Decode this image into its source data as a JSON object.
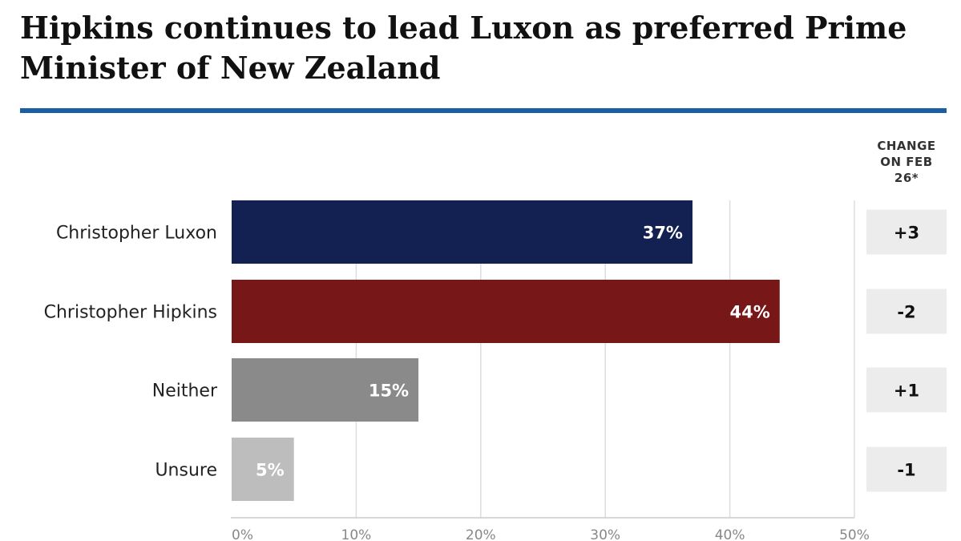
{
  "chart_data": {
    "type": "bar",
    "orientation": "horizontal",
    "title": "Hipkins continues to lead Luxon as preferred Prime Minister of New Zealand",
    "categories": [
      "Christopher Luxon",
      "Christopher Hipkins",
      "Neither",
      "Unsure"
    ],
    "values": [
      37,
      44,
      15,
      5
    ],
    "value_labels": [
      "37%",
      "44%",
      "15%",
      "5%"
    ],
    "colors": [
      "#122052",
      "#771718",
      "#8a8a8a",
      "#bdbdbd"
    ],
    "xlim": [
      0,
      50
    ],
    "x_ticks": [
      0,
      10,
      20,
      30,
      40,
      50
    ],
    "x_tick_labels": [
      "0%",
      "10%",
      "20%",
      "30%",
      "40%",
      "50%"
    ],
    "grid": true,
    "change_header": [
      "CHANGE",
      "ON FEB",
      "26*"
    ],
    "changes": [
      "+3",
      "-2",
      "+1",
      "-1"
    ]
  },
  "colors": {
    "accent_rule": "#1b5ea3",
    "gridline": "#dddddd",
    "change_box": "#ececec"
  }
}
